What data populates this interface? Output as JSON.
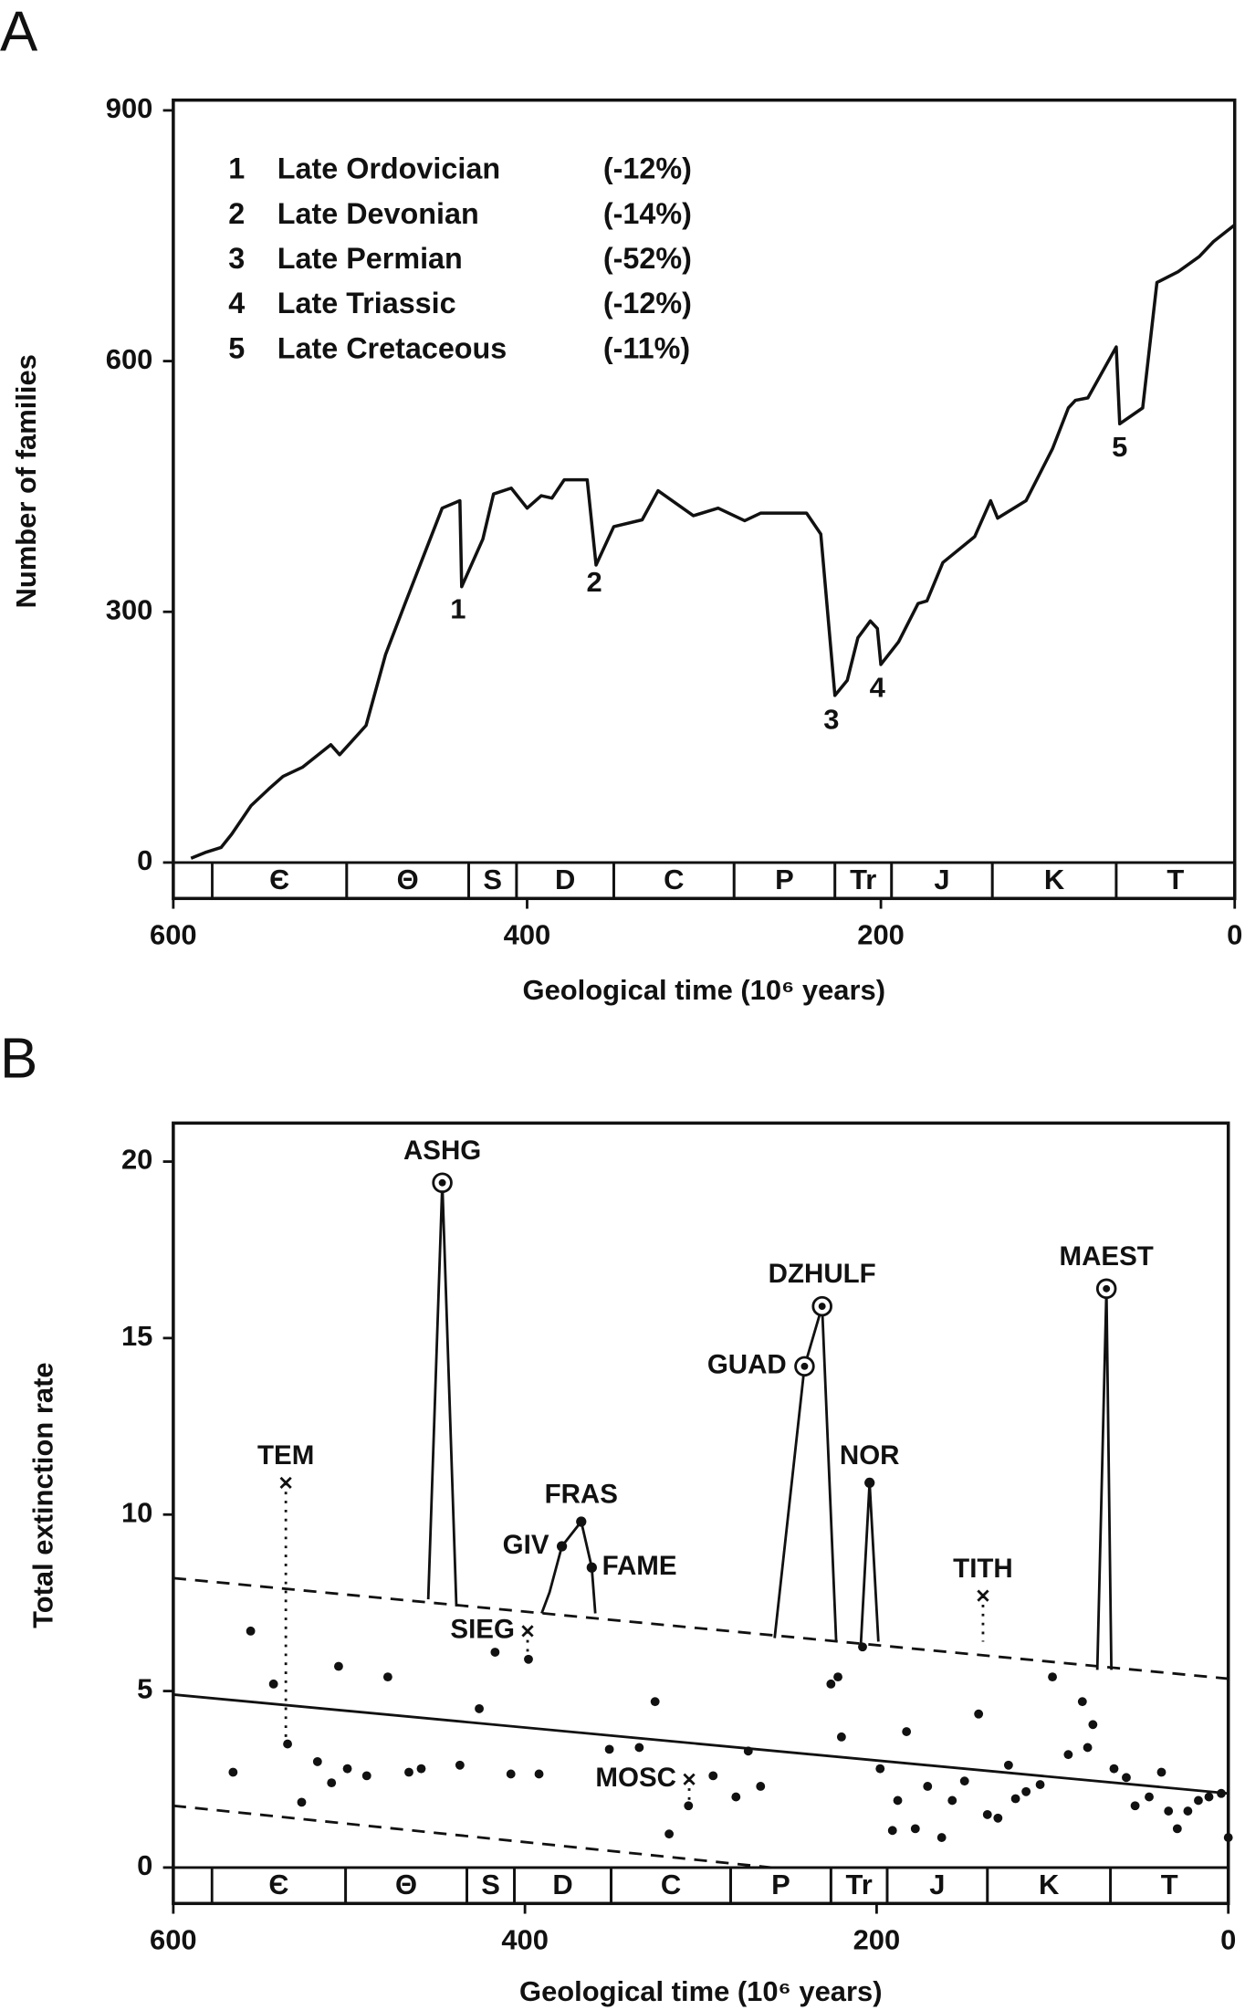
{
  "chart_data": [
    {
      "type": "line",
      "panel_label": "A",
      "xlabel": "Geological time (10⁶ years)",
      "ylabel": "Number of families",
      "xlim": [
        600,
        0
      ],
      "ylim": [
        0,
        900
      ],
      "xticks": [
        600,
        400,
        200,
        0
      ],
      "yticks": [
        0,
        300,
        600,
        900
      ],
      "color": "#111111",
      "x": [
        590,
        582,
        573,
        567,
        556,
        546,
        538,
        527,
        511,
        506,
        491,
        480,
        469,
        460,
        448,
        438,
        437,
        425,
        419,
        409,
        400,
        392,
        386,
        379,
        366,
        361,
        351,
        335,
        326,
        306,
        292,
        277,
        268,
        242,
        234,
        226,
        219,
        213,
        206,
        202,
        200,
        190,
        179,
        174,
        165,
        147,
        138,
        134,
        118,
        103,
        94,
        90,
        83,
        67,
        65,
        52,
        44,
        32,
        20,
        12,
        0
      ],
      "values": [
        5,
        12,
        18,
        34,
        68,
        88,
        103,
        114,
        141,
        129,
        164,
        249,
        310,
        359,
        424,
        433,
        330,
        387,
        441,
        448,
        424,
        439,
        436,
        458,
        458,
        356,
        402,
        410,
        445,
        415,
        424,
        409,
        418,
        418,
        393,
        200,
        218,
        269,
        289,
        280,
        237,
        264,
        310,
        313,
        359,
        390,
        433,
        412,
        433,
        495,
        544,
        553,
        556,
        617,
        525,
        544,
        694,
        707,
        725,
        743,
        763
      ],
      "legend_entries": [
        {
          "number": "1",
          "name": "Late Ordovician",
          "change": "(-12%)"
        },
        {
          "number": "2",
          "name": "Late Devonian",
          "change": "(-14%)"
        },
        {
          "number": "3",
          "name": "Late Permian",
          "change": "(-52%)"
        },
        {
          "number": "4",
          "name": "Late Triassic",
          "change": "(-12%)"
        },
        {
          "number": "5",
          "name": "Late Cretaceous",
          "change": "(-11%)"
        }
      ],
      "annotations": [
        {
          "text": "1",
          "x": 439,
          "y": 301
        },
        {
          "text": "2",
          "x": 362,
          "y": 333
        },
        {
          "text": "3",
          "x": 228,
          "y": 169
        },
        {
          "text": "4",
          "x": 202,
          "y": 207
        },
        {
          "text": "5",
          "x": 65,
          "y": 495
        }
      ],
      "periods": [
        {
          "label": "Є",
          "start": 578,
          "end": 502
        },
        {
          "label": "Θ",
          "start": 502,
          "end": 433
        },
        {
          "label": "S",
          "start": 433,
          "end": 406
        },
        {
          "label": "D",
          "start": 406,
          "end": 351
        },
        {
          "label": "C",
          "start": 351,
          "end": 283
        },
        {
          "label": "P",
          "start": 283,
          "end": 226
        },
        {
          "label": "Tr",
          "start": 226,
          "end": 194
        },
        {
          "label": "J",
          "start": 194,
          "end": 137
        },
        {
          "label": "K",
          "start": 137,
          "end": 67
        },
        {
          "label": "T",
          "start": 67,
          "end": 0
        }
      ]
    },
    {
      "type": "scatter",
      "panel_label": "B",
      "xlabel": "Geological time (10⁶ years)",
      "ylabel": "Total extinction rate",
      "xlim": [
        600,
        0
      ],
      "ylim": [
        0,
        20
      ],
      "xticks": [
        600,
        400,
        200,
        0
      ],
      "yticks": [
        0,
        5,
        10,
        15,
        20
      ],
      "color": "#111111",
      "x": [
        566,
        556,
        543,
        535,
        527,
        518,
        510,
        506,
        501,
        490,
        478,
        466,
        459,
        437,
        426,
        417,
        408,
        398,
        392,
        352,
        335,
        326,
        318,
        307,
        293,
        280,
        273,
        266,
        226,
        222,
        220,
        208,
        198,
        191,
        188,
        183,
        178,
        171,
        163,
        157,
        150,
        142,
        137,
        131,
        125,
        121,
        115,
        107,
        100,
        91,
        83,
        80,
        77,
        65,
        58,
        53,
        45,
        38,
        34,
        29,
        23,
        17,
        11,
        4,
        0
      ],
      "values": [
        2.7,
        6.7,
        5.2,
        3.5,
        1.85,
        3.0,
        2.4,
        5.7,
        2.8,
        2.6,
        5.4,
        2.7,
        2.8,
        2.9,
        4.5,
        6.1,
        2.65,
        5.9,
        2.65,
        3.35,
        3.4,
        4.7,
        0.95,
        1.75,
        2.6,
        2.0,
        3.3,
        2.3,
        5.2,
        5.4,
        3.7,
        6.25,
        2.8,
        1.05,
        1.9,
        3.85,
        1.1,
        2.3,
        0.85,
        1.9,
        2.45,
        4.35,
        1.5,
        1.4,
        2.9,
        1.95,
        2.15,
        2.35,
        5.4,
        3.2,
        4.7,
        3.4,
        4.05,
        2.8,
        2.55,
        1.75,
        2.0,
        2.7,
        1.6,
        1.1,
        1.6,
        1.9,
        2.0,
        2.1,
        0.85
      ],
      "trend_lines": [
        {
          "style": "solid",
          "x": [
            600,
            0
          ],
          "y": [
            4.9,
            2.1
          ]
        },
        {
          "style": "dashed",
          "x": [
            600,
            0
          ],
          "y": [
            8.2,
            5.35
          ]
        },
        {
          "style": "dashed",
          "x": [
            600,
            260
          ],
          "y": [
            1.75,
            0
          ]
        }
      ],
      "spikes": [
        {
          "style": "solid",
          "x": [
            455,
            447,
            439
          ],
          "y": [
            7.6,
            19.4,
            7.4
          ]
        },
        {
          "style": "solid",
          "x": [
            258,
            241,
            231,
            223
          ],
          "y": [
            6.5,
            14.2,
            15.9,
            6.4
          ]
        },
        {
          "style": "solid",
          "x": [
            209,
            204,
            199
          ],
          "y": [
            6.3,
            10.9,
            6.4
          ]
        },
        {
          "style": "solid",
          "x": [
            74.5,
            69.3,
            66.5
          ],
          "y": [
            5.6,
            16.4,
            5.6
          ]
        },
        {
          "style": "solid",
          "x": [
            390.5,
            386,
            379,
            368,
            362,
            360
          ],
          "y": [
            7.2,
            7.8,
            9.1,
            9.8,
            8.5,
            7.2
          ]
        },
        {
          "style": "dotted",
          "x": [
            536,
            536
          ],
          "y": [
            10.9,
            3.5
          ]
        },
        {
          "style": "dotted",
          "x": [
            139.5,
            139.5
          ],
          "y": [
            7.7,
            6.4
          ]
        },
        {
          "style": "dotted",
          "x": [
            398.5,
            398.5
          ],
          "y": [
            6.7,
            5.9
          ]
        },
        {
          "style": "dotted",
          "x": [
            306.6,
            306.6
          ],
          "y": [
            2.5,
            1.8
          ]
        }
      ],
      "peaks": [
        {
          "label": "ASHG",
          "x": 447,
          "y": 19.4,
          "marker": "circle",
          "side": "above"
        },
        {
          "label": "GUAD",
          "x": 241,
          "y": 14.2,
          "marker": "circle",
          "side": "left"
        },
        {
          "label": "DZHULF",
          "x": 231,
          "y": 15.9,
          "marker": "circle",
          "side": "above"
        },
        {
          "label": "MAEST",
          "x": 69.3,
          "y": 16.4,
          "marker": "circle",
          "side": "above"
        },
        {
          "label": "NOR",
          "x": 204,
          "y": 10.9,
          "marker": "dot",
          "side": "above"
        },
        {
          "label": "FRAS",
          "x": 368,
          "y": 9.8,
          "marker": "dot",
          "side": "above"
        },
        {
          "label": "GIV",
          "x": 379,
          "y": 9.1,
          "marker": "dot",
          "side": "left"
        },
        {
          "label": "FAME",
          "x": 362,
          "y": 8.5,
          "marker": "dot",
          "side": "right"
        },
        {
          "label": "TEM",
          "x": 536,
          "y": 10.9,
          "marker": "cross",
          "side": "above"
        },
        {
          "label": "TITH",
          "x": 139.5,
          "y": 7.7,
          "marker": "cross",
          "side": "above"
        },
        {
          "label": "SIEG",
          "x": 398.5,
          "y": 6.7,
          "marker": "cross",
          "side": "left"
        },
        {
          "label": "MOSC",
          "x": 306.6,
          "y": 2.5,
          "marker": "cross",
          "side": "left"
        }
      ],
      "periods": [
        {
          "label": "Є",
          "start": 578,
          "end": 502
        },
        {
          "label": "Θ",
          "start": 502,
          "end": 433
        },
        {
          "label": "S",
          "start": 433,
          "end": 406
        },
        {
          "label": "D",
          "start": 406,
          "end": 351
        },
        {
          "label": "C",
          "start": 351,
          "end": 283
        },
        {
          "label": "P",
          "start": 283,
          "end": 226
        },
        {
          "label": "Tr",
          "start": 226,
          "end": 194
        },
        {
          "label": "J",
          "start": 194,
          "end": 137
        },
        {
          "label": "K",
          "start": 137,
          "end": 67
        },
        {
          "label": "T",
          "start": 67,
          "end": 0
        }
      ]
    }
  ]
}
